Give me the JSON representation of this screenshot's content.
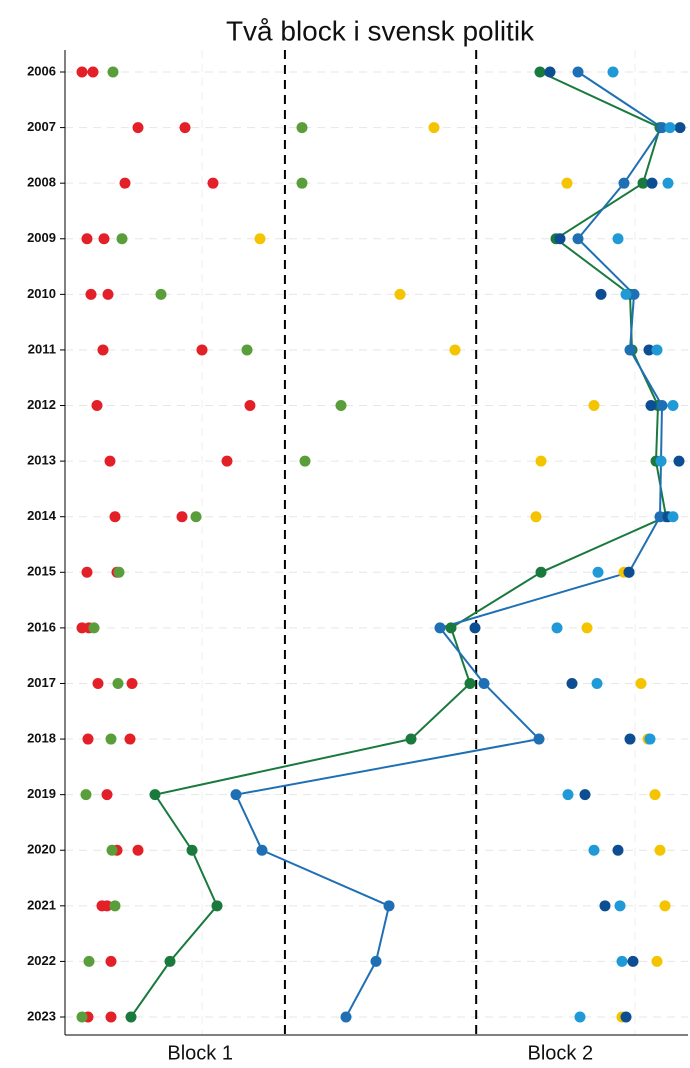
{
  "chart_data": {
    "type": "dot",
    "title": "Två block i svensk politik",
    "xlabels": [
      "Block 1",
      "Block 2"
    ],
    "categories": [
      "2006",
      "2007",
      "2008",
      "2009",
      "2010",
      "2011",
      "2012",
      "2013",
      "2014",
      "2015",
      "2016",
      "2017",
      "2018",
      "2019",
      "2020",
      "2021",
      "2022",
      "2023"
    ],
    "xlim": [
      0,
      623
    ],
    "series": [
      {
        "color": "#e32027",
        "values": [
          17,
          73,
          60,
          22,
          26,
          38,
          32,
          45,
          50,
          22,
          17,
          33,
          23,
          42,
          52,
          37,
          46,
          23
        ]
      },
      {
        "color": "#e32027",
        "values": [
          28,
          120,
          148,
          39,
          43,
          137,
          185,
          162,
          117,
          52,
          24,
          67,
          65,
          null,
          73,
          42,
          null,
          46
        ]
      },
      {
        "color": "#5a9e3c",
        "values": [
          48,
          237,
          237,
          57,
          96,
          182,
          276,
          240,
          131,
          54,
          29,
          53,
          46,
          21,
          47,
          50,
          24,
          17
        ]
      },
      {
        "color": "#f5c400",
        "values": [
          null,
          369,
          502,
          195,
          335,
          390,
          529,
          476,
          471,
          559,
          522,
          576,
          583,
          590,
          595,
          600,
          592,
          557
        ]
      },
      {
        "color": "#1a7a3e",
        "line": true,
        "values": [
          475,
          595,
          578,
          491,
          565,
          567,
          593,
          591,
          601,
          476,
          386,
          405,
          346,
          90,
          127,
          152,
          105,
          66
        ]
      },
      {
        "color": "#1f6fb5",
        "line": true,
        "values": [
          513,
          597,
          559,
          513,
          569,
          565,
          597,
          596,
          595,
          564,
          375,
          419,
          474,
          171,
          197,
          324,
          311,
          281
        ]
      },
      {
        "color": "#0d4e93",
        "values": [
          485,
          615,
          587,
          495,
          536,
          584,
          586,
          614,
          603,
          564,
          410,
          507,
          565,
          520,
          553,
          540,
          568,
          561
        ]
      },
      {
        "color": "#1f9ad6",
        "values": [
          548,
          605,
          603,
          553,
          561,
          592,
          608,
          596,
          608,
          533,
          492,
          532,
          585,
          503,
          529,
          555,
          557,
          515
        ]
      }
    ]
  }
}
